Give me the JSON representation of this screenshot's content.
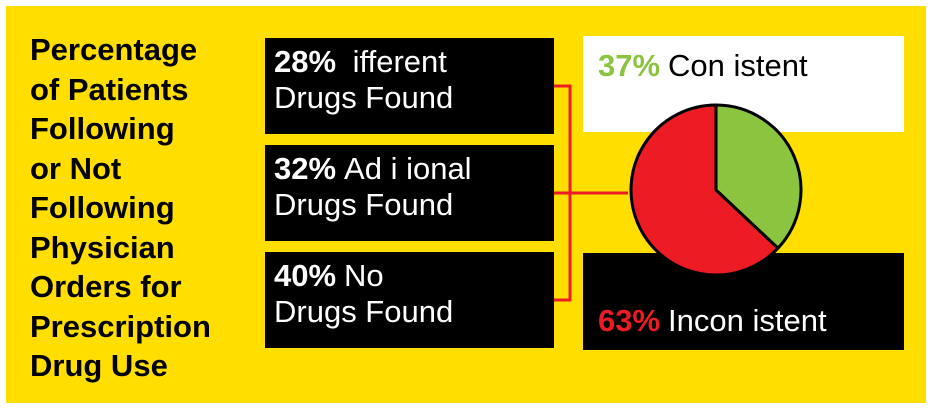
{
  "title": [
    "Percentage",
    "of Patients",
    "Following",
    "or Not",
    "Following",
    "Physician",
    "Orders for",
    "Prescription",
    "Drug Use"
  ],
  "boxes": [
    {
      "pct": "28%",
      "line1": "ifferent",
      "line2": "Drugs Found"
    },
    {
      "pct": "32%",
      "line1": "Ad  i ional",
      "line2": "Drugs Found"
    },
    {
      "pct": "40%",
      "line1": "No",
      "line2": "Drugs Found"
    }
  ],
  "colors": {
    "background": "#FFDE00",
    "consistent": "#8BC53F",
    "inconsistent": "#ED1C24",
    "connector": "#ED1C24"
  },
  "chart_data": {
    "type": "pie",
    "slices": [
      {
        "label": "Con  istent",
        "pct_label": "37%",
        "value": 37,
        "color": "#8BC53F"
      },
      {
        "label": "Incon  istent",
        "pct_label": "63%",
        "value": 63,
        "color": "#ED1C24"
      }
    ]
  }
}
